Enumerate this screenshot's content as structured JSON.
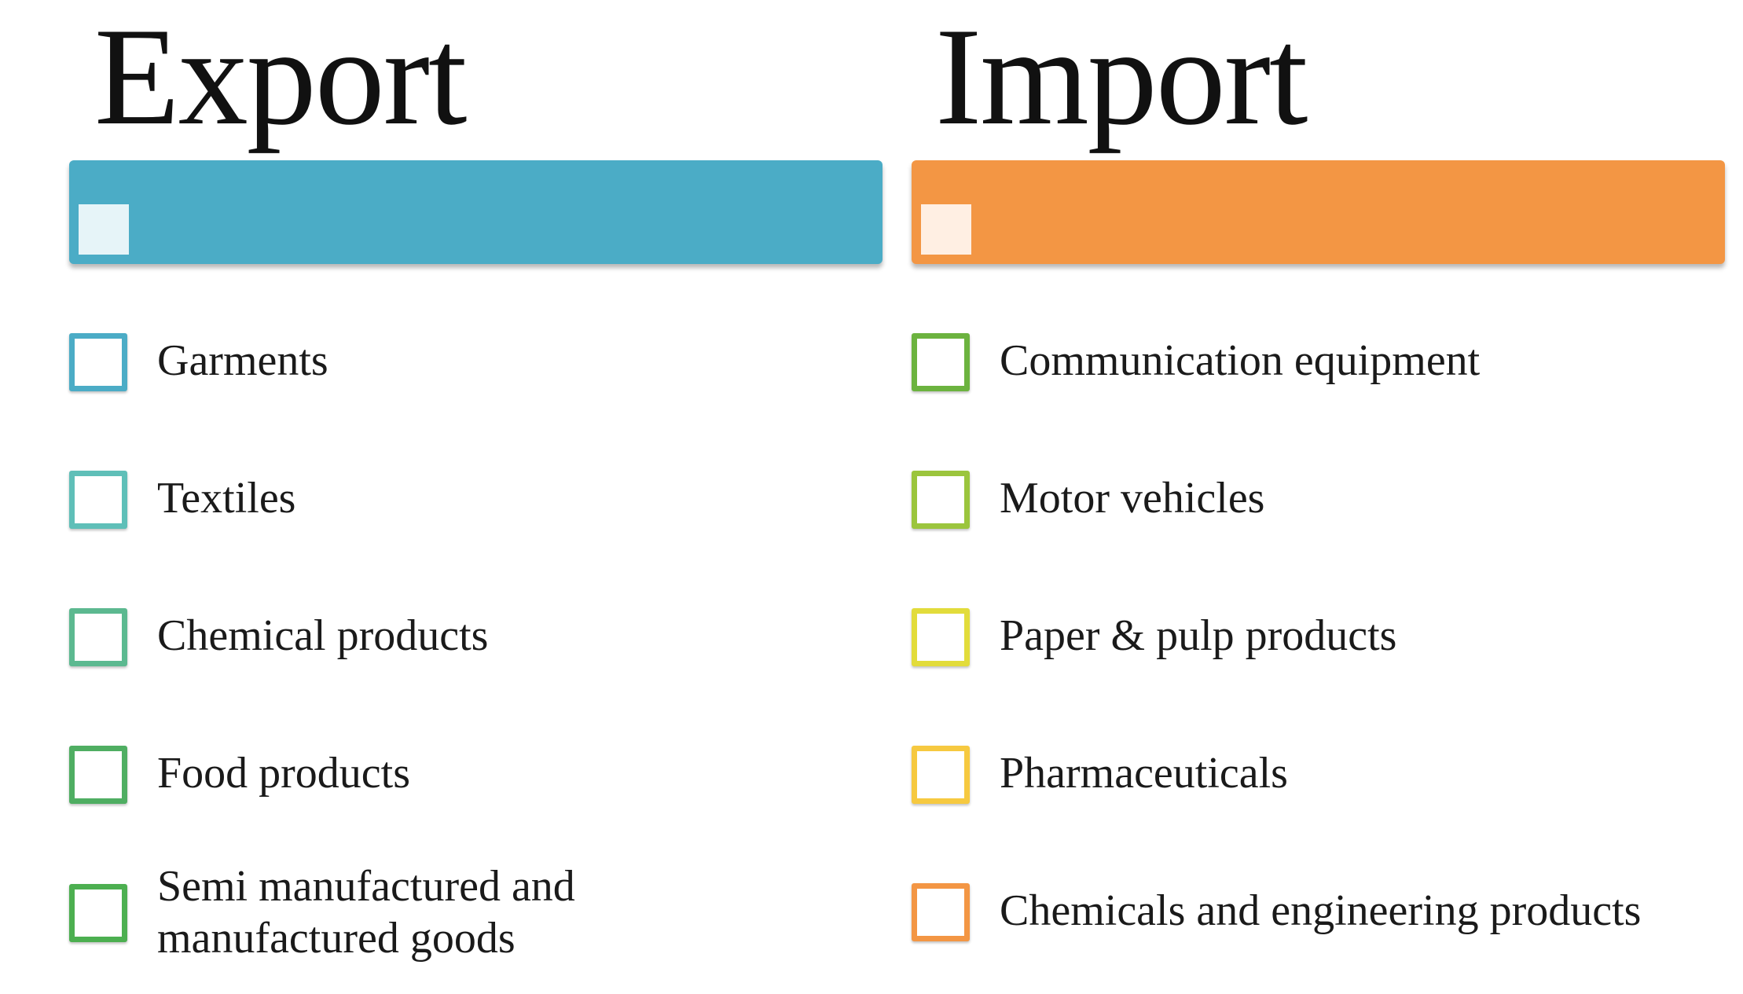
{
  "export": {
    "title": "Export",
    "bar_color": "#4bacc6",
    "marker_color": "#f2fafc",
    "items": [
      {
        "label": "Garments",
        "color": "#4bacc6"
      },
      {
        "label": "Textiles",
        "color": "#5fbfb8"
      },
      {
        "label": "Chemical products",
        "color": "#5cb990"
      },
      {
        "label": "Food products",
        "color": "#4fae62"
      },
      {
        "label": "Semi manufactured and",
        "label_line2": "manufactured goods",
        "color": "#4caf50"
      }
    ]
  },
  "import": {
    "title": "Import",
    "bar_color": "#f39644",
    "marker_color": "#fff5ef",
    "items": [
      {
        "label": "Communication equipment",
        "color": "#6cb33f"
      },
      {
        "label": "Motor vehicles",
        "color": "#9bc53d"
      },
      {
        "label": "Paper & pulp products",
        "color": "#e2dc3b"
      },
      {
        "label": "Pharmaceuticals",
        "color": "#f6c940"
      },
      {
        "label": "Chemicals and engineering products",
        "color": "#f39644"
      }
    ]
  }
}
